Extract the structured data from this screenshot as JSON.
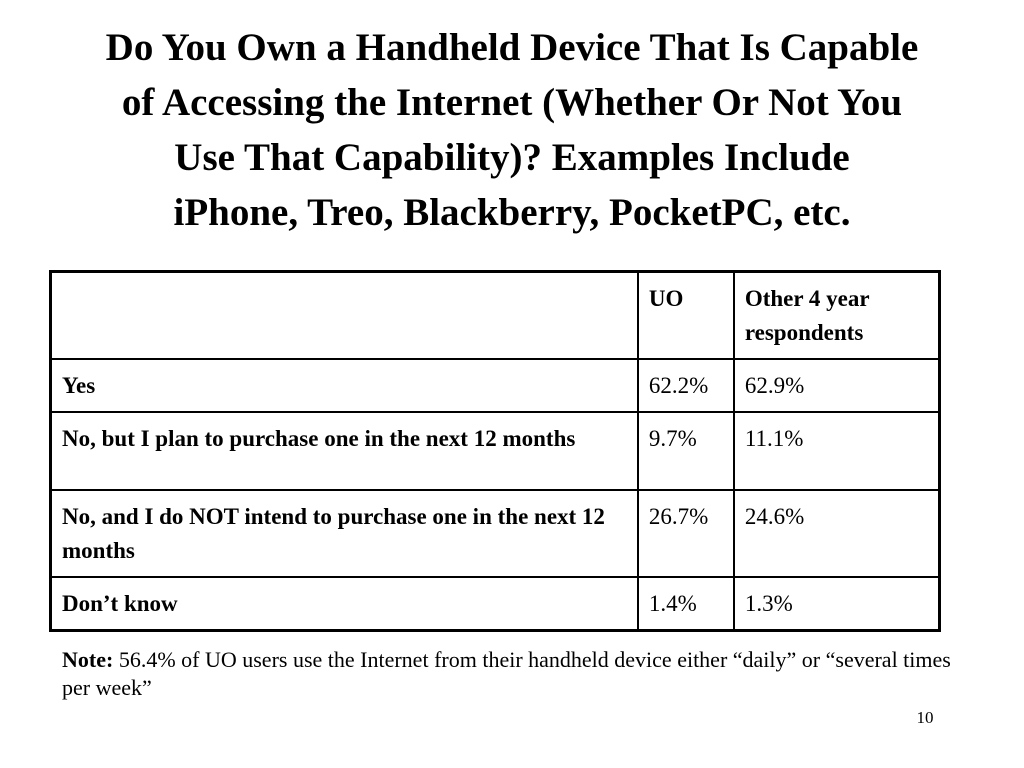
{
  "slide": {
    "title_lines": [
      "Do You Own a Handheld Device That Is Capable",
      "of Accessing the Internet (Whether Or Not You",
      "Use That Capability)? Examples Include",
      "iPhone, Treo, Blackberry, PocketPC, etc."
    ],
    "page_number": "10"
  },
  "table": {
    "headers": [
      "",
      "UO",
      "Other 4 year respondents"
    ],
    "rows": [
      {
        "label": "Yes",
        "uo": "62.2%",
        "other": "62.9%"
      },
      {
        "label": "No, but I plan to purchase one in the next 12 months",
        "uo": "9.7%",
        "other": "11.1%"
      },
      {
        "label": "No, and I do NOT intend to purchase one in the next 12 months",
        "uo": "26.7%",
        "other": "24.6%"
      },
      {
        "label": "Don’t know",
        "uo": "1.4%",
        "other": "1.3%"
      }
    ]
  },
  "note": {
    "label": "Note:",
    "text": " 56.4% of UO users use the Internet from their handheld device either “daily” or “several times per week”"
  }
}
